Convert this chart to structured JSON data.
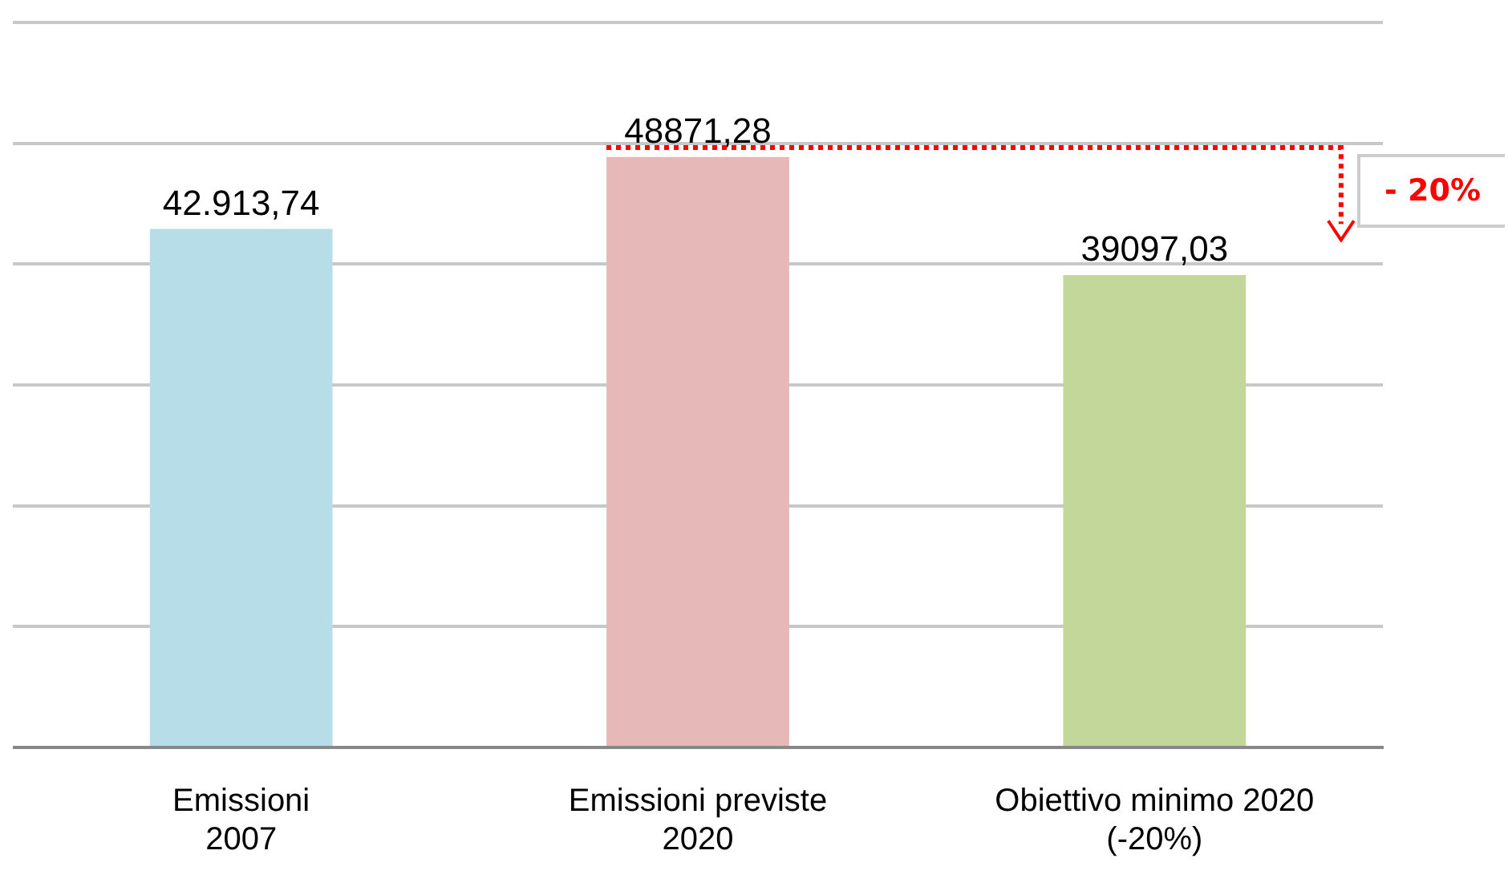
{
  "chart_data": {
    "type": "bar",
    "categories": [
      "Emissioni 2007",
      "Emissioni previste 2020",
      "Obiettivo minimo 2020 (-20%)"
    ],
    "values": [
      42913.74,
      48871.28,
      39097.03
    ],
    "colors": [
      "#b7dde8",
      "#e6b8b8",
      "#c4d79b"
    ],
    "value_labels": [
      "42.913,74",
      "48871,28",
      "39097,03"
    ],
    "ylim": [
      0,
      60000
    ],
    "yticks": [
      {
        "value": 0,
        "label": null
      },
      {
        "value": 10000,
        "label": null
      },
      {
        "value": 20000,
        "label": null
      },
      {
        "value": 30000,
        "label": null
      },
      {
        "value": 40000,
        "label": null
      },
      {
        "value": 50000,
        "label": null
      },
      {
        "value": 60000,
        "label": null
      }
    ],
    "grid": "y",
    "legend": false,
    "tick_labels": "x",
    "annotations": [
      "- 20%"
    ]
  }
}
